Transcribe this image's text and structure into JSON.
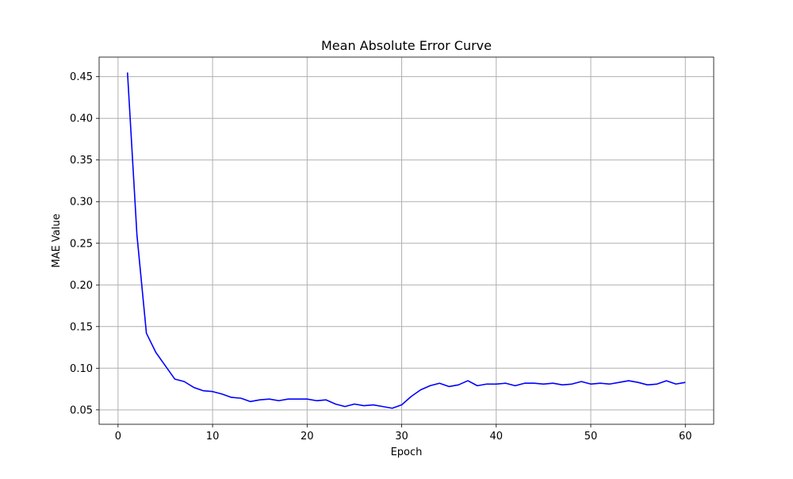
{
  "chart_data": {
    "type": "line",
    "title": "Mean Absolute Error Curve",
    "xlabel": "Epoch",
    "ylabel": "MAE Value",
    "xlim": [
      -2,
      63
    ],
    "ylim": [
      0.0327,
      0.4735
    ],
    "xticks": [
      0,
      10,
      20,
      30,
      40,
      50,
      60
    ],
    "yticks": [
      0.05,
      0.1,
      0.15,
      0.2,
      0.25,
      0.3,
      0.35,
      0.4,
      0.45
    ],
    "ytick_labels": [
      "0.05",
      "0.10",
      "0.15",
      "0.20",
      "0.25",
      "0.30",
      "0.35",
      "0.40",
      "0.45"
    ],
    "grid": true,
    "legend": false,
    "colors": {
      "line": "#0000ff",
      "grid": "#b0b0b0",
      "axis": "#000000"
    },
    "series": [
      {
        "x": [
          1,
          2,
          3,
          4,
          5,
          6,
          7,
          8,
          9,
          10,
          11,
          12,
          13,
          14,
          15,
          16,
          17,
          18,
          19,
          20,
          21,
          22,
          23,
          24,
          25,
          26,
          27,
          28,
          29,
          30,
          31,
          32,
          33,
          34,
          35,
          36,
          37,
          38,
          39,
          40,
          41,
          42,
          43,
          44,
          45,
          46,
          47,
          48,
          49,
          50,
          51,
          52,
          53,
          54,
          55,
          56,
          57,
          58,
          59,
          60
        ],
        "values": [
          0.455,
          0.26,
          0.142,
          0.119,
          0.103,
          0.087,
          0.084,
          0.077,
          0.073,
          0.072,
          0.069,
          0.065,
          0.064,
          0.06,
          0.062,
          0.063,
          0.061,
          0.063,
          0.063,
          0.063,
          0.061,
          0.062,
          0.057,
          0.054,
          0.057,
          0.055,
          0.056,
          0.054,
          0.052,
          0.056,
          0.066,
          0.074,
          0.079,
          0.082,
          0.078,
          0.08,
          0.085,
          0.079,
          0.081,
          0.081,
          0.082,
          0.079,
          0.082,
          0.082,
          0.081,
          0.082,
          0.08,
          0.081,
          0.084,
          0.081,
          0.082,
          0.081,
          0.083,
          0.085,
          0.083,
          0.08,
          0.081,
          0.085,
          0.081,
          0.083
        ]
      }
    ]
  }
}
